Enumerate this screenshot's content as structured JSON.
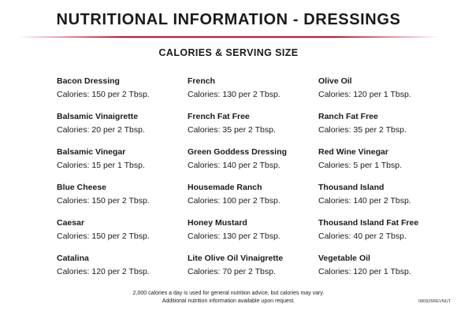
{
  "title": "NUTRITIONAL INFORMATION - DRESSINGS",
  "subtitle": "CALORIES & SERVING SIZE",
  "accent_color": "#c8102e",
  "columns": [
    {
      "items": [
        {
          "name": "Bacon Dressing",
          "calories": "Calories: 150 per 2 Tbsp."
        },
        {
          "name": "Balsamic Vinaigrette",
          "calories": "Calories: 20 per 2 Tbsp."
        },
        {
          "name": "Balsamic Vinegar",
          "calories": "Calories: 15 per 1 Tbsp."
        },
        {
          "name": "Blue Cheese",
          "calories": "Calories: 150 per 2 Tbsp."
        },
        {
          "name": "Caesar",
          "calories": "Calories: 150 per 2 Tbsp."
        },
        {
          "name": "Catalina",
          "calories": "Calories: 120 per 2 Tbsp."
        }
      ]
    },
    {
      "items": [
        {
          "name": "French",
          "calories": "Calories: 130 per 2 Tbsp."
        },
        {
          "name": "French Fat Free",
          "calories": "Calories: 35 per 2 Tbsp."
        },
        {
          "name": "Green Goddess Dressing",
          "calories": "Calories: 140 per 2 Tbsp."
        },
        {
          "name": "Housemade Ranch",
          "calories": "Calories: 100 per 2 Tbsp."
        },
        {
          "name": "Honey Mustard",
          "calories": "Calories: 130 per 2 Tbsp."
        },
        {
          "name": "Lite Olive Oil Vinaigrette",
          "calories": "Calories: 70 per 2 Tbsp."
        }
      ]
    },
    {
      "items": [
        {
          "name": "Olive Oil",
          "calories": "Calories: 120 per 1 Tbsp."
        },
        {
          "name": "Ranch Fat Free",
          "calories": "Calories: 35 per 2 Tbsp."
        },
        {
          "name": "Red Wine Vinegar",
          "calories": "Calories: 5 per 1 Tbsp."
        },
        {
          "name": "Thousand Island",
          "calories": "Calories: 140 per 2 Tbsp."
        },
        {
          "name": "Thousand Island Fat Free",
          "calories": "Calories: 40 per 2 Tbsp."
        },
        {
          "name": "Vegetable Oil",
          "calories": "Calories: 120 per 1 Tbsp."
        }
      ]
    }
  ],
  "footnote": {
    "line1": "2,000 calories a day is used for general nutrition advice, but calories may vary.",
    "line2": "Additional nutrition information available upon request."
  },
  "document_code": "080925REVNUT"
}
